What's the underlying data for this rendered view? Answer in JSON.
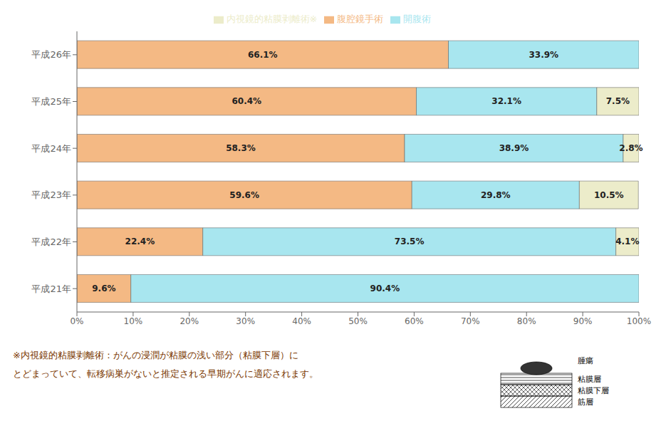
{
  "chart_data": {
    "type": "bar",
    "orientation": "horizontal",
    "stacked": true,
    "data_labels": true,
    "grid": false,
    "legend": "top",
    "categories": [
      "平成21年",
      "平成22年",
      "平成23年",
      "平成24年",
      "平成25年",
      "平成26年"
    ],
    "series": [
      {
        "name": "腹腔鏡手術",
        "color": "#F4B984",
        "values": [
          9.6,
          22.4,
          59.6,
          58.3,
          60.4,
          66.1
        ],
        "value_labels": [
          "9.6%",
          "22.4%",
          "59.6%",
          "58.3%",
          "60.4%",
          "66.1%"
        ]
      },
      {
        "name": "開腹術",
        "color": "#A8E6EF",
        "values": [
          90.4,
          73.5,
          29.8,
          38.9,
          32.1,
          33.9
        ],
        "value_labels": [
          "90.4%",
          "73.5%",
          "29.8%",
          "38.9%",
          "32.1%",
          "33.9%"
        ]
      },
      {
        "name": "内視鏡的粘膜剥離術※",
        "color": "#ECECCA",
        "values": [
          0.0,
          4.1,
          10.5,
          2.8,
          7.5,
          0.0
        ],
        "value_labels": [
          null,
          "4.1%",
          "10.5%",
          "2.8%",
          "7.5%",
          null
        ]
      }
    ],
    "xlim": [
      0,
      100
    ],
    "xticks": [
      {
        "value": 0,
        "label": "0%"
      },
      {
        "value": 10,
        "label": "10%"
      },
      {
        "value": 20,
        "label": "20%"
      },
      {
        "value": 30,
        "label": "30%"
      },
      {
        "value": 40,
        "label": "40%"
      },
      {
        "value": 50,
        "label": "50%"
      },
      {
        "value": 60,
        "label": "60%"
      },
      {
        "value": 70,
        "label": "70%"
      },
      {
        "value": 80,
        "label": "80%"
      },
      {
        "value": 90,
        "label": "90%"
      },
      {
        "value": 100,
        "label": "100%"
      }
    ],
    "annotations": [
      "※内視鏡的粘膜剥離術：がんの浸潤が粘膜の浅い部分（粘膜下層）に",
      "とどまっていて、転移病巣がないと推定される早期がんに適応されます。",
      "腫瘍",
      "粘膜層",
      "粘膜下層",
      "筋層"
    ]
  }
}
